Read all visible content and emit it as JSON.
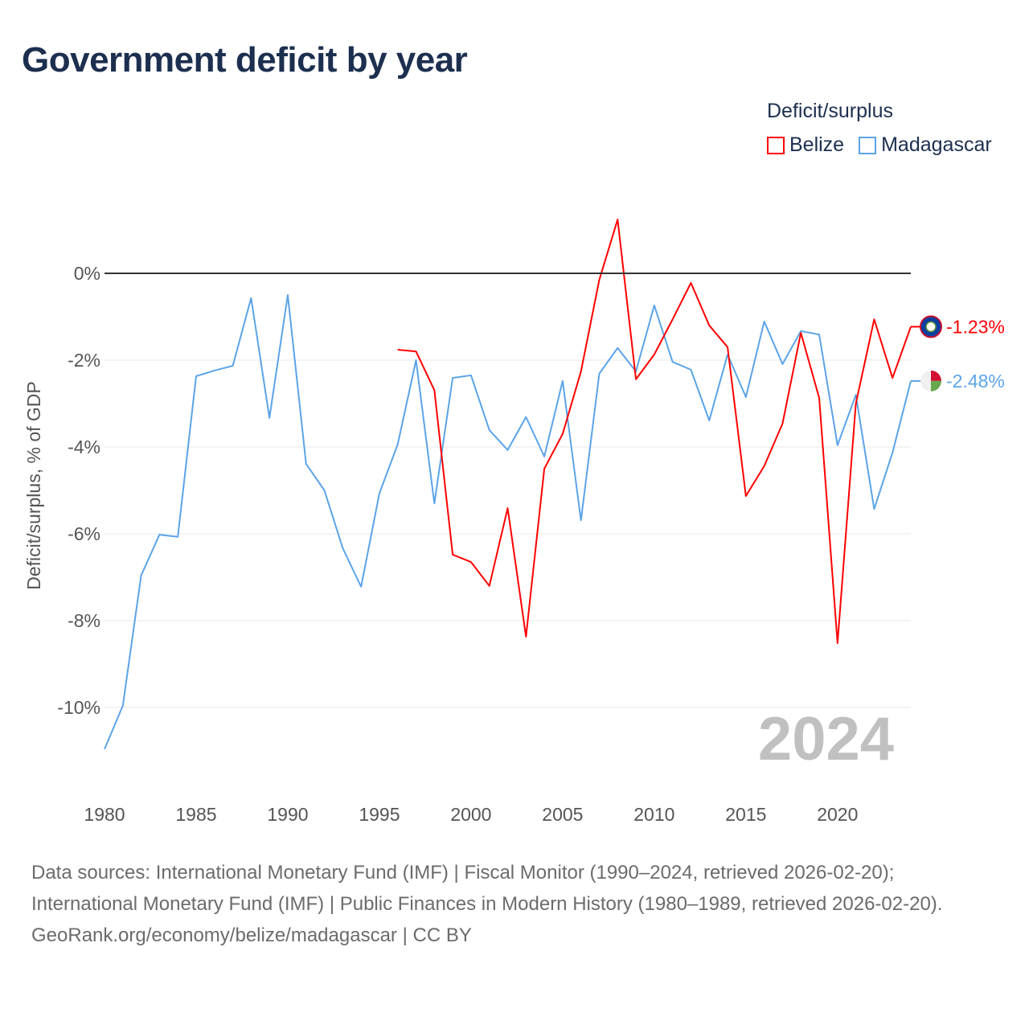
{
  "title": "Government deficit by year",
  "legend": {
    "title": "Deficit/surplus",
    "items": [
      {
        "label": "Belize",
        "color": "#ff0000"
      },
      {
        "label": "Madagascar",
        "color": "#5ba4e8"
      }
    ]
  },
  "footer": {
    "sources": "Data sources: International Monetary Fund (IMF) | Fiscal Monitor (1990–2024, retrieved 2026-02-20); International Monetary Fund (IMF) | Public Finances in Modern History (1980–1989, retrieved 2026-02-20).",
    "credit": "GeoRank.org/economy/belize/madagascar | CC BY"
  },
  "chart_data": {
    "type": "line",
    "title": "Government deficit by year",
    "xlabel": "",
    "ylabel": "Deficit/surplus, % of GDP",
    "xlim": [
      1980,
      2024
    ],
    "ylim": [
      -11.5,
      2
    ],
    "yticks": [
      0,
      -2,
      -4,
      -6,
      -8,
      -10
    ],
    "ytick_labels": [
      "0%",
      "-2%",
      "-4%",
      "-6%",
      "-8%",
      "-10%"
    ],
    "xticks": [
      1980,
      1985,
      1990,
      1995,
      2000,
      2005,
      2010,
      2015,
      2020
    ],
    "xtick_labels": [
      "1980",
      "1985",
      "1990",
      "1995",
      "2000",
      "2005",
      "2010",
      "2015",
      "2020"
    ],
    "current_year_label": "2024",
    "grid": true,
    "legend_position": "top-right",
    "series": [
      {
        "name": "Belize",
        "color": "#ff0000",
        "end_label": "-1.23%",
        "x": [
          1996,
          1997,
          1998,
          1999,
          2000,
          2001,
          2002,
          2003,
          2004,
          2005,
          2006,
          2007,
          2008,
          2009,
          2010,
          2011,
          2012,
          2013,
          2014,
          2015,
          2016,
          2017,
          2018,
          2019,
          2020,
          2021,
          2022,
          2023,
          2024
        ],
        "values": [
          -1.76,
          -1.8,
          -2.69,
          -6.48,
          -6.65,
          -7.2,
          -5.41,
          -8.37,
          -4.5,
          -3.7,
          -2.26,
          -0.15,
          1.24,
          -2.44,
          -1.87,
          -1.06,
          -0.22,
          -1.2,
          -1.7,
          -5.13,
          -4.44,
          -3.46,
          -1.37,
          -2.87,
          -8.52,
          -3.0,
          -1.06,
          -2.41,
          -1.23
        ]
      },
      {
        "name": "Madagascar",
        "color": "#5ba4e8",
        "end_label": "-2.48%",
        "x": [
          1980,
          1981,
          1982,
          1983,
          1984,
          1985,
          1986,
          1987,
          1988,
          1989,
          1990,
          1991,
          1992,
          1993,
          1994,
          1995,
          1996,
          1997,
          1998,
          1999,
          2000,
          2001,
          2002,
          2003,
          2004,
          2005,
          2006,
          2007,
          2008,
          2009,
          2010,
          2011,
          2012,
          2013,
          2014,
          2015,
          2016,
          2017,
          2018,
          2019,
          2020,
          2021,
          2022,
          2023,
          2024
        ],
        "values": [
          -10.96,
          -9.96,
          -6.96,
          -6.02,
          -6.07,
          -2.37,
          -2.24,
          -2.13,
          -0.57,
          -3.33,
          -0.5,
          -4.39,
          -5.0,
          -6.33,
          -7.22,
          -5.07,
          -3.94,
          -2.0,
          -5.3,
          -2.41,
          -2.35,
          -3.61,
          -4.07,
          -3.31,
          -4.22,
          -2.48,
          -5.69,
          -2.31,
          -1.72,
          -2.26,
          -0.74,
          -2.04,
          -2.22,
          -3.39,
          -1.87,
          -2.85,
          -1.11,
          -2.09,
          -1.33,
          -1.41,
          -3.96,
          -2.8,
          -5.43,
          -4.13,
          -2.48
        ]
      }
    ]
  }
}
